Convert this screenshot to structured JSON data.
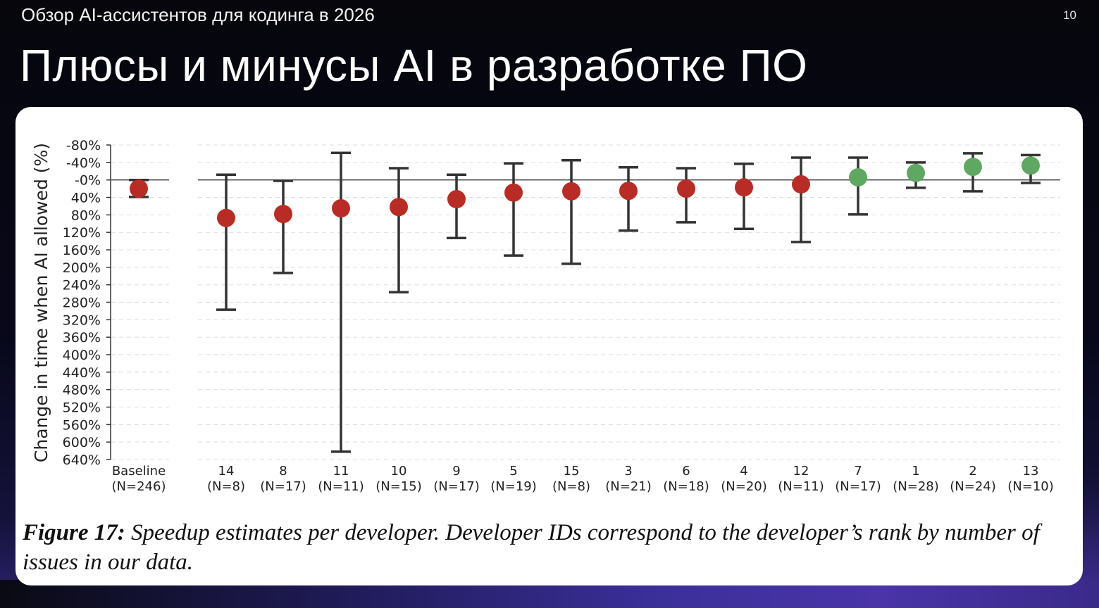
{
  "slide": {
    "subtitle": "Обзор AI-ассистентов для кодинга в 2026",
    "page_number": "10",
    "title": "Плюсы и минусы AI в разработке ПО"
  },
  "caption": {
    "label": "Figure 17:",
    "text": " Speedup estimates per developer. Developer IDs correspond to the developer’s rank by number of issues in our data."
  },
  "colors": {
    "slowdown": "#b92c25",
    "speedup": "#5fa862",
    "errorbar": "#333333",
    "grid": "#dddddd"
  },
  "chart_data": {
    "type": "scatter",
    "subtype": "point-with-error-bars",
    "title": "",
    "xlabel": "",
    "ylabel": "Change in time when AI allowed (%)",
    "y_inverted": true,
    "ylim": [
      -80,
      640
    ],
    "yticks": [
      "-80%",
      "-40%",
      "-0%",
      "40%",
      "80%",
      "120%",
      "160%",
      "200%",
      "240%",
      "280%",
      "320%",
      "360%",
      "400%",
      "440%",
      "480%",
      "520%",
      "560%",
      "600%",
      "640%"
    ],
    "ytick_values": [
      -80,
      -40,
      0,
      40,
      80,
      120,
      160,
      200,
      240,
      280,
      320,
      360,
      400,
      440,
      480,
      520,
      560,
      600,
      640
    ],
    "grid": "horizontal dashed",
    "reference_line": 0,
    "categories": [
      "Baseline",
      "14",
      "8",
      "11",
      "10",
      "9",
      "5",
      "15",
      "3",
      "6",
      "4",
      "12",
      "7",
      "1",
      "2",
      "13"
    ],
    "n_labels": [
      "(N=246)",
      "(N=8)",
      "(N=17)",
      "(N=11)",
      "(N=15)",
      "(N=17)",
      "(N=19)",
      "(N=8)",
      "(N=21)",
      "(N=18)",
      "(N=20)",
      "(N=11)",
      "(N=17)",
      "(N=28)",
      "(N=24)",
      "(N=10)"
    ],
    "values": [
      20,
      87,
      78,
      65,
      62,
      44,
      29,
      26,
      25,
      20,
      17,
      10,
      -6,
      -16,
      -30,
      -33
    ],
    "ci_lower": [
      0,
      -12,
      2,
      -62,
      -27,
      -12,
      -38,
      -45,
      -29,
      -27,
      -37,
      -51,
      -51,
      -40,
      -61,
      -57
    ],
    "ci_upper": [
      39,
      297,
      213,
      622,
      257,
      133,
      173,
      192,
      116,
      97,
      112,
      142,
      79,
      18,
      26,
      7
    ],
    "point_colors": [
      "red",
      "red",
      "red",
      "red",
      "red",
      "red",
      "red",
      "red",
      "red",
      "red",
      "red",
      "red",
      "green",
      "green",
      "green",
      "green"
    ]
  }
}
